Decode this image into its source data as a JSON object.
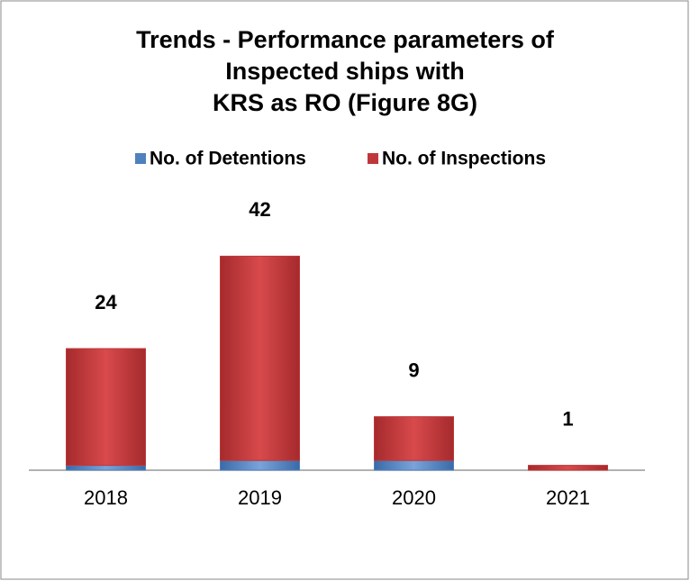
{
  "chart_data": {
    "type": "bar",
    "stacked": true,
    "title": [
      "Trends - Performance parameters of",
      "Inspected ships with",
      "KRS as RO (Figure 8G)"
    ],
    "categories": [
      "2018",
      "2019",
      "2020",
      "2021"
    ],
    "series": [
      {
        "name": "No. of Detentions",
        "color": "#4f81bd",
        "values": [
          1,
          2,
          2,
          null
        ]
      },
      {
        "name": "No. of Inspections",
        "color": "#c0373a",
        "values": [
          24,
          42,
          9,
          1
        ]
      }
    ],
    "ylim": [
      0,
      50
    ],
    "legend": "top"
  }
}
